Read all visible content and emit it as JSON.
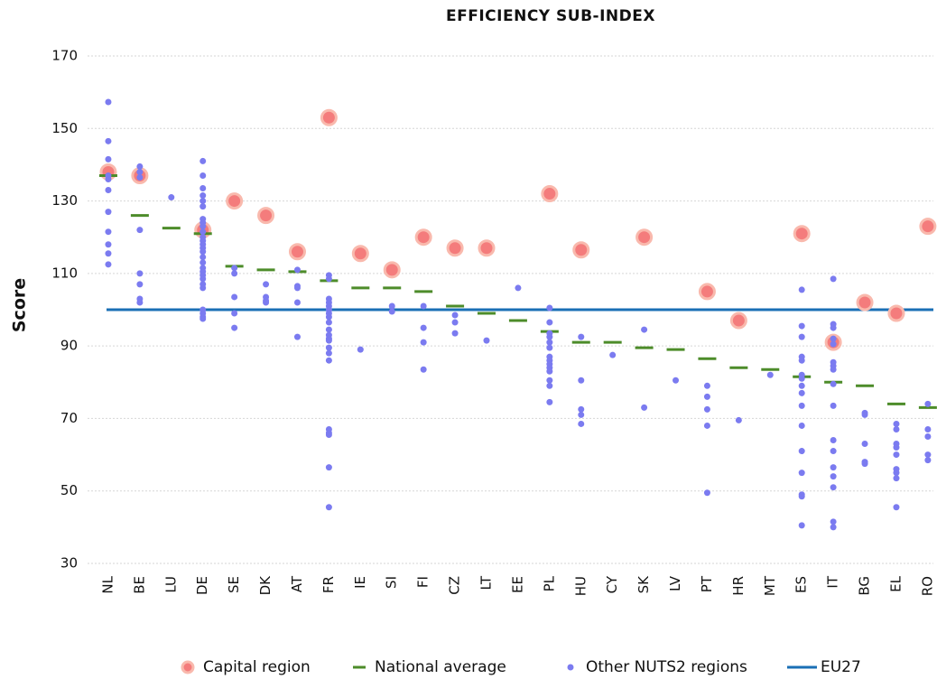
{
  "chart_data": {
    "type": "strip",
    "title": "EFFICIENCY  SUB-INDEX",
    "y_label": "Score",
    "categories": [
      "NL",
      "BE",
      "LU",
      "DE",
      "SE",
      "DK",
      "AT",
      "FR",
      "IE",
      "SI",
      "FI",
      "CZ",
      "LT",
      "EE",
      "PL",
      "HU",
      "CY",
      "SK",
      "LV",
      "PT",
      "HR",
      "MT",
      "ES",
      "IT",
      "BG",
      "EL",
      "RO"
    ],
    "ylim": [
      30,
      170
    ],
    "yticks": [
      30,
      50,
      70,
      90,
      110,
      130,
      150,
      170
    ],
    "grid": true,
    "legend": "bottom",
    "series": [
      {
        "name": "Capital region",
        "color": "#f47c7c",
        "marker": "circle",
        "values": [
          138,
          137,
          null,
          122,
          130,
          126,
          116,
          153,
          115.5,
          111,
          120,
          117,
          117,
          null,
          132,
          116.5,
          null,
          120,
          null,
          105,
          97,
          null,
          121,
          91,
          102,
          99,
          123
        ]
      },
      {
        "name": "National average",
        "color": "#4d8c2a",
        "marker": "dash",
        "values": [
          137,
          126,
          122.5,
          121,
          112,
          111,
          110.5,
          108,
          106,
          106,
          105,
          101,
          99,
          97,
          94,
          91,
          91,
          89.5,
          89,
          86.5,
          84,
          83.5,
          81.5,
          80,
          79,
          74,
          73
        ]
      },
      {
        "name": "Other NUTS2 regions",
        "color": "#7b7bf0",
        "marker": "dot",
        "values": [
          [
            157.3,
            146.5,
            141.5,
            137,
            136,
            133,
            127,
            121.5,
            118,
            115.5,
            112.5
          ],
          [
            139.5,
            138,
            136.5,
            122,
            110,
            107,
            103,
            102
          ],
          [
            131
          ],
          [
            141,
            137,
            133.5,
            131.5,
            130,
            128.5,
            125,
            124,
            123,
            121.5,
            120,
            119,
            118,
            117,
            116,
            114.5,
            113,
            111.5,
            110.5,
            109.5,
            108.5,
            107,
            106,
            100,
            99,
            98,
            97.5
          ],
          [
            111.5,
            110,
            103.5,
            99,
            95
          ],
          [
            107,
            103.5,
            102.5,
            102
          ],
          [
            111,
            106.5,
            106,
            102,
            92.5
          ],
          [
            109.5,
            108.5,
            103,
            102,
            101,
            100,
            99,
            98,
            96.5,
            94.5,
            93,
            92,
            91.5,
            89.5,
            88,
            86,
            67,
            66,
            65.5,
            56.5,
            45.5
          ],
          [
            89
          ],
          [
            101,
            99.5
          ],
          [
            101,
            95,
            91,
            83.5
          ],
          [
            98.5,
            96.5,
            93.5
          ],
          [
            91.5
          ],
          [
            106
          ],
          [
            100.5,
            96.5,
            93.5,
            92.5,
            91,
            89.5,
            87,
            86,
            85,
            84,
            83,
            80.5,
            79,
            74.5
          ],
          [
            92.5,
            80.5,
            72.5,
            71,
            68.5
          ],
          [
            87.5
          ],
          [
            94.5,
            73
          ],
          [
            80.5
          ],
          [
            79,
            76,
            72.5,
            68,
            49.5
          ],
          [
            69.5
          ],
          [
            82
          ],
          [
            105.5,
            95.5,
            92.5,
            87,
            86,
            82,
            81,
            79,
            77,
            73.5,
            68,
            61,
            55,
            49,
            48.5,
            40.5
          ],
          [
            108.5,
            96,
            95,
            92,
            90.5,
            85.5,
            84.5,
            83.5,
            79.5,
            73.5,
            64,
            61,
            56.5,
            54,
            51,
            41.5,
            40
          ],
          [
            71.5,
            71,
            63,
            58,
            57.5
          ],
          [
            68.5,
            67,
            63,
            62,
            60,
            56,
            55,
            53.5,
            45.5
          ],
          [
            74,
            67,
            65,
            60,
            58.5
          ]
        ]
      }
    ],
    "reference_line": {
      "name": "EU27",
      "color": "#1a6fb5",
      "value": 100
    }
  }
}
